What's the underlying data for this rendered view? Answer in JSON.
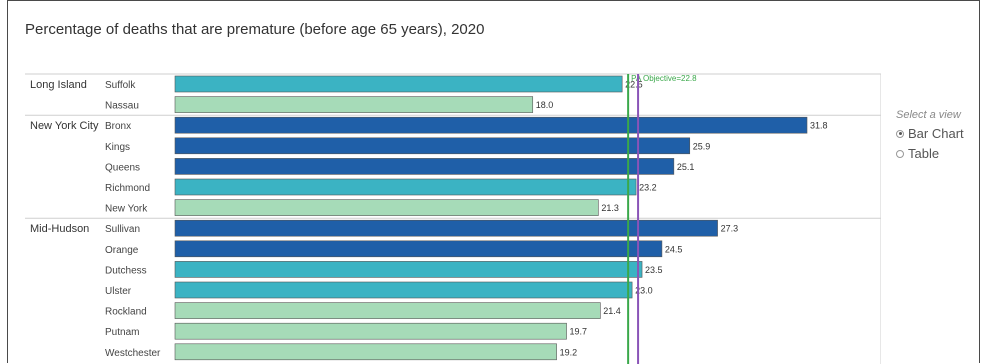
{
  "chart_data": {
    "type": "bar",
    "orientation": "horizontal",
    "title": "Percentage of deaths that are premature (before age 65 years), 2020",
    "groups": [
      {
        "region": "Long Island",
        "counties": [
          {
            "name": "Suffolk",
            "value": 22.5,
            "label": "22.5",
            "color": "#3bb3c3"
          },
          {
            "name": "Nassau",
            "value": 18.0,
            "label": "18.0",
            "color": "#a6dbb8"
          }
        ]
      },
      {
        "region": "New York City",
        "counties": [
          {
            "name": "Bronx",
            "value": 31.8,
            "label": "31.8",
            "color": "#1f5fa8"
          },
          {
            "name": "Kings",
            "value": 25.9,
            "label": "25.9",
            "color": "#1f5fa8"
          },
          {
            "name": "Queens",
            "value": 25.1,
            "label": "25.1",
            "color": "#1f5fa8"
          },
          {
            "name": "Richmond",
            "value": 23.2,
            "label": "23.2",
            "color": "#3bb3c3"
          },
          {
            "name": "New York",
            "value": 21.3,
            "label": "21.3",
            "color": "#a6dbb8"
          }
        ]
      },
      {
        "region": "Mid-Hudson",
        "counties": [
          {
            "name": "Sullivan",
            "value": 27.3,
            "label": "27.3",
            "color": "#1f5fa8"
          },
          {
            "name": "Orange",
            "value": 24.5,
            "label": "24.5",
            "color": "#1f5fa8"
          },
          {
            "name": "Dutchess",
            "value": 23.5,
            "label": "23.5",
            "color": "#3bb3c3"
          },
          {
            "name": "Ulster",
            "value": 23.0,
            "label": "23.0",
            "color": "#3bb3c3"
          },
          {
            "name": "Rockland",
            "value": 21.4,
            "label": "21.4",
            "color": "#a6dbb8"
          },
          {
            "name": "Putnam",
            "value": 19.7,
            "label": "19.7",
            "color": "#a6dbb8"
          },
          {
            "name": "Westchester",
            "value": 19.2,
            "label": "19.2",
            "color": "#a6dbb8"
          }
        ]
      }
    ],
    "reference_lines": [
      {
        "label": "PA Objective=22.8",
        "value": 22.8,
        "color": "#3aa84a"
      },
      {
        "label": "",
        "value": 23.3,
        "color": "#8a54b8"
      }
    ],
    "xlim": [
      0,
      36.5
    ],
    "grid": false
  },
  "view_selector": {
    "title": "Select a view",
    "options": [
      {
        "label": "Bar Chart",
        "selected": true
      },
      {
        "label": "Table",
        "selected": false
      }
    ]
  }
}
